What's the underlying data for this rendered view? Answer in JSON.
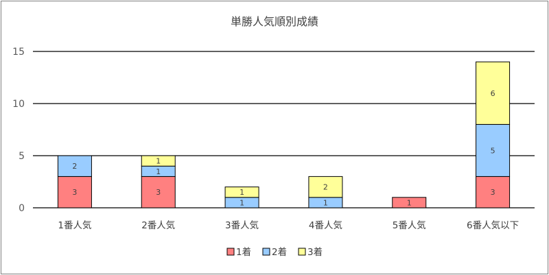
{
  "chart_data": {
    "type": "bar",
    "stacked": true,
    "title": "単勝人気順別成績",
    "categories": [
      "1番人気",
      "2番人気",
      "3番人気",
      "4番人気",
      "5番人気",
      "6番人気以下"
    ],
    "series": [
      {
        "name": "1着",
        "color": "#ff8080",
        "values": [
          3,
          3,
          0,
          0,
          1,
          3
        ]
      },
      {
        "name": "2着",
        "color": "#99ccff",
        "values": [
          2,
          1,
          1,
          1,
          0,
          5
        ]
      },
      {
        "name": "3着",
        "color": "#ffff99",
        "values": [
          0,
          1,
          1,
          2,
          0,
          6
        ]
      }
    ],
    "ylim": [
      0,
      15
    ],
    "yticks": [
      0,
      5,
      10,
      15
    ],
    "grid": true,
    "legend": "bottom"
  }
}
